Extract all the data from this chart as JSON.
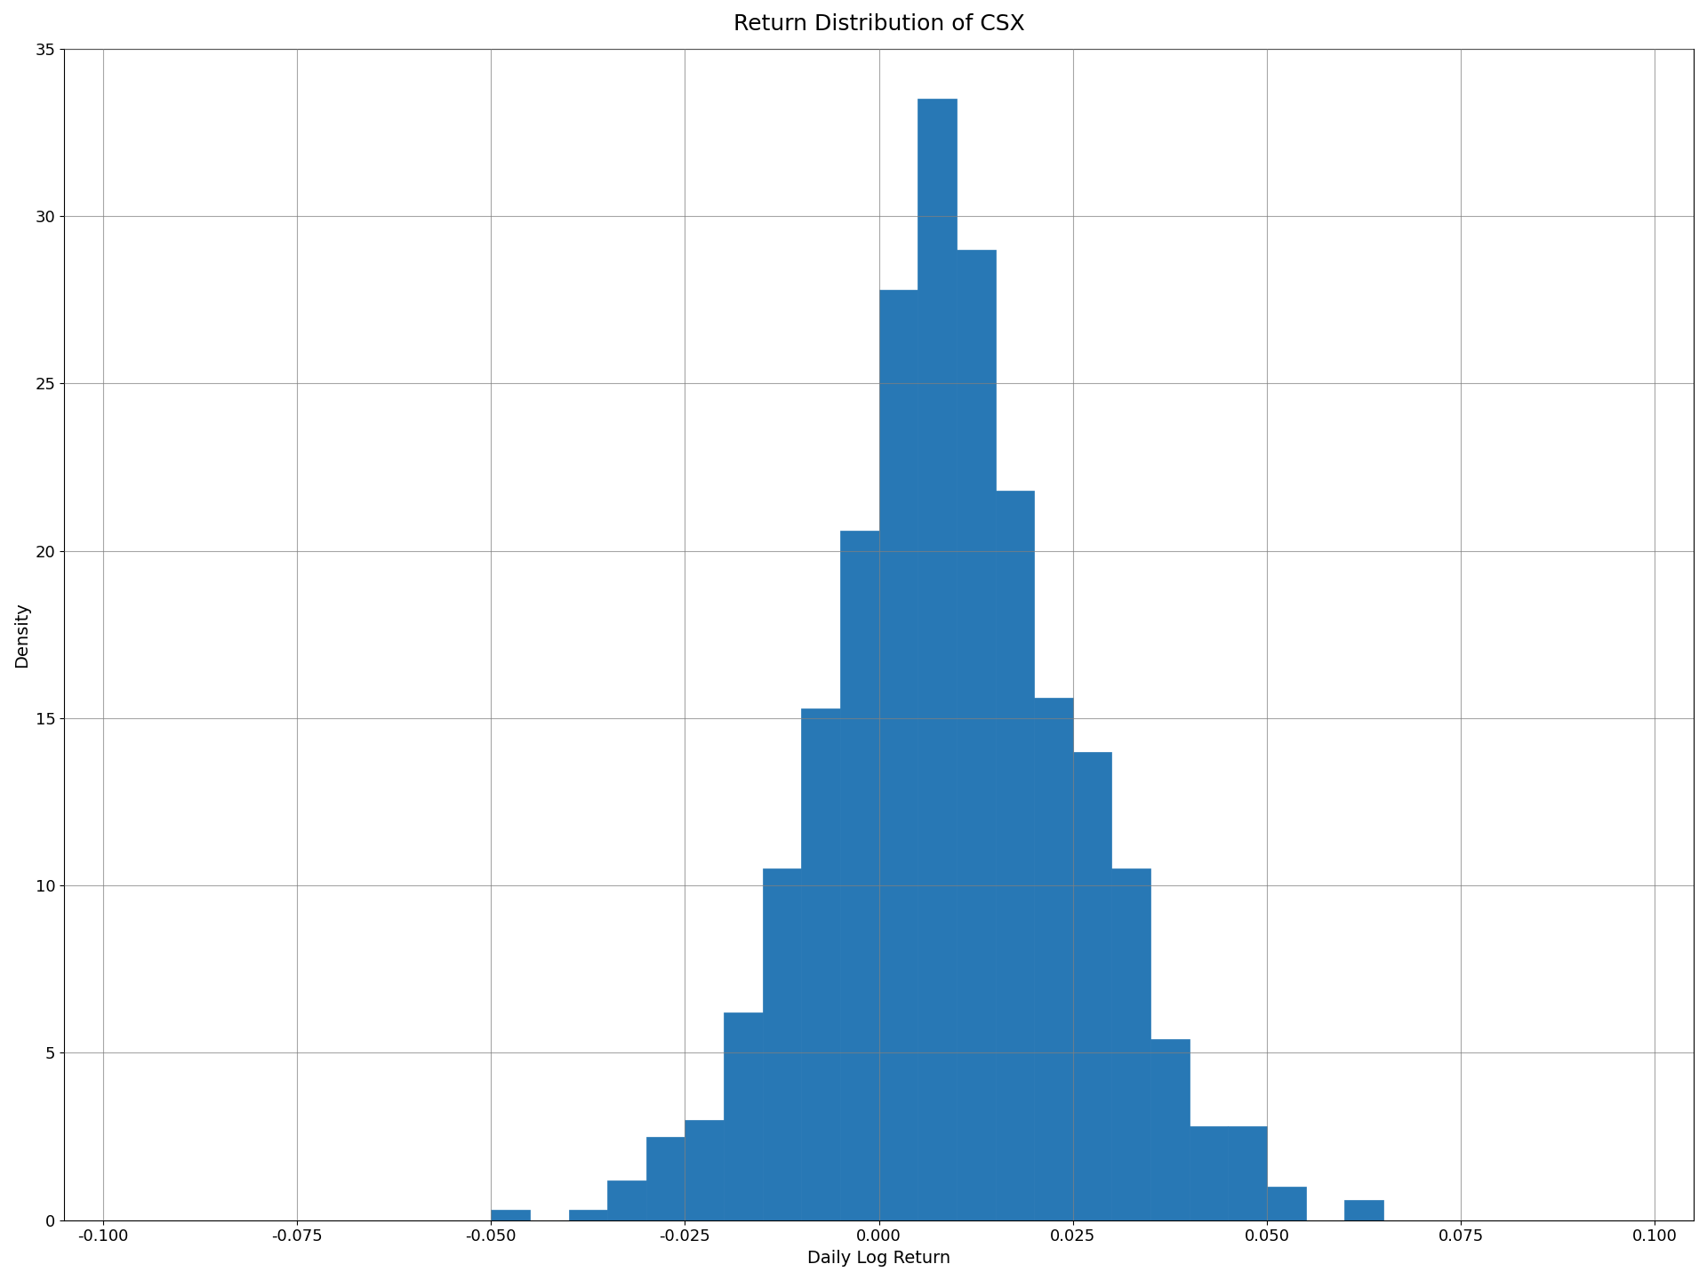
{
  "title": "Return Distribution of CSX",
  "xlabel": "Daily Log Return",
  "ylabel": "Density",
  "xlim": [
    -0.105,
    0.105
  ],
  "ylim": [
    0,
    35
  ],
  "xticks": [
    -0.1,
    -0.075,
    -0.05,
    -0.025,
    0.0,
    0.025,
    0.05,
    0.075,
    0.1
  ],
  "xtick_labels": [
    "-0.100",
    "-0.075",
    "-0.050",
    "-0.025",
    "0.000",
    "0.025",
    "0.050",
    "0.075",
    "0.100"
  ],
  "yticks": [
    0,
    5,
    10,
    15,
    20,
    25,
    30,
    35
  ],
  "bar_color": "#2878b5",
  "edge_color": "#2878b5",
  "bin_width": 0.005,
  "bin_centers": [
    -0.0975,
    -0.0925,
    -0.0875,
    -0.0825,
    -0.0775,
    -0.0725,
    -0.0675,
    -0.0625,
    -0.0575,
    -0.0525,
    -0.0475,
    -0.0425,
    -0.0375,
    -0.0325,
    -0.0275,
    -0.0225,
    -0.0175,
    -0.0125,
    -0.0075,
    -0.0025,
    0.0025,
    0.0075,
    0.0125,
    0.0175,
    0.0225,
    0.0275,
    0.0325,
    0.0375,
    0.0425,
    0.0475,
    0.0525,
    0.0575,
    0.0625,
    0.0675,
    0.0725,
    0.0775,
    0.0825,
    0.0875,
    0.0925,
    0.0975
  ],
  "heights": [
    0.0,
    0.0,
    0.0,
    0.0,
    0.0,
    0.0,
    0.0,
    0.0,
    0.0,
    0.0,
    0.3,
    0.0,
    0.3,
    1.2,
    2.5,
    3.0,
    6.2,
    10.5,
    15.3,
    20.6,
    27.8,
    33.5,
    29.0,
    21.8,
    15.6,
    14.0,
    10.5,
    5.4,
    2.8,
    2.8,
    1.0,
    0.0,
    0.6,
    0.0,
    0.0,
    0.0,
    0.0,
    0.0,
    0.0,
    0.0
  ],
  "title_fontsize": 18,
  "label_fontsize": 14,
  "tick_fontsize": 13,
  "figsize": [
    19.2,
    14.4
  ],
  "dpi": 100
}
